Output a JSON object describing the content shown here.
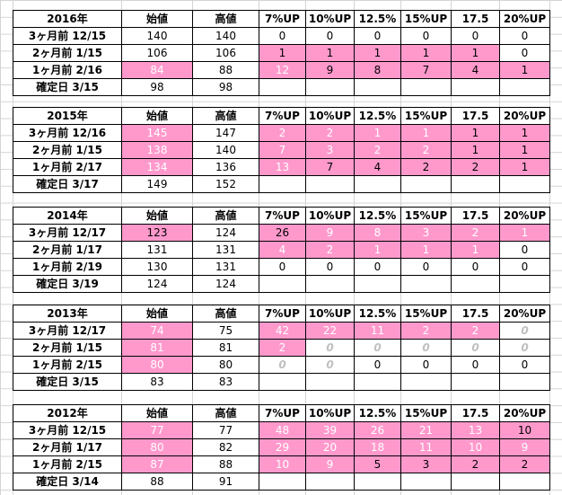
{
  "columns": [
    "始値",
    "高値",
    "7%UP",
    "10%UP",
    "12.5%",
    "15%UP",
    "17.5",
    "20%UP"
  ],
  "colors": {
    "highlight": "#ff99cc",
    "grid": "#d4d4d4"
  },
  "blocks": [
    {
      "year": "2016年",
      "rows": [
        {
          "label": "3ヶ月前 12/15",
          "cells": [
            {
              "v": "140"
            },
            {
              "v": "140"
            },
            {
              "v": "0"
            },
            {
              "v": "0"
            },
            {
              "v": "0"
            },
            {
              "v": "0"
            },
            {
              "v": "0"
            },
            {
              "v": "0"
            }
          ]
        },
        {
          "label": "2ヶ月前 1/15",
          "cells": [
            {
              "v": "106"
            },
            {
              "v": "106"
            },
            {
              "v": "1",
              "hl": true,
              "dark": true
            },
            {
              "v": "1",
              "hl": true,
              "dark": true
            },
            {
              "v": "1",
              "hl": true,
              "dark": true
            },
            {
              "v": "1",
              "hl": true,
              "dark": true
            },
            {
              "v": "1",
              "hl": true,
              "dark": true
            },
            {
              "v": "0"
            }
          ]
        },
        {
          "label": "1ヶ月前 2/16",
          "cells": [
            {
              "v": "84",
              "hl": true
            },
            {
              "v": "88"
            },
            {
              "v": "12",
              "hl": true
            },
            {
              "v": "9",
              "hl": true,
              "dark": true
            },
            {
              "v": "8",
              "hl": true,
              "dark": true
            },
            {
              "v": "7",
              "hl": true,
              "dark": true
            },
            {
              "v": "4",
              "hl": true,
              "dark": true
            },
            {
              "v": "1",
              "hl": true,
              "dark": true
            }
          ]
        },
        {
          "label": "確定日 3/15",
          "cells": [
            {
              "v": "98"
            },
            {
              "v": "98"
            },
            {
              "v": ""
            },
            {
              "v": ""
            },
            {
              "v": ""
            },
            {
              "v": ""
            },
            {
              "v": ""
            },
            {
              "v": ""
            }
          ]
        }
      ]
    },
    {
      "year": "2015年",
      "rows": [
        {
          "label": "3ヶ月前 12/16",
          "cells": [
            {
              "v": "145",
              "hl": true
            },
            {
              "v": "147"
            },
            {
              "v": "2",
              "hl": true
            },
            {
              "v": "2",
              "hl": true
            },
            {
              "v": "1",
              "hl": true
            },
            {
              "v": "1",
              "hl": true
            },
            {
              "v": "1",
              "hl": true,
              "dark": true
            },
            {
              "v": "1",
              "hl": true,
              "dark": true
            }
          ]
        },
        {
          "label": "2ヶ月前 1/15",
          "cells": [
            {
              "v": "138",
              "hl": true
            },
            {
              "v": "140"
            },
            {
              "v": "7",
              "hl": true
            },
            {
              "v": "3",
              "hl": true
            },
            {
              "v": "2",
              "hl": true
            },
            {
              "v": "2",
              "hl": true
            },
            {
              "v": "1",
              "hl": true,
              "dark": true
            },
            {
              "v": "1",
              "hl": true,
              "dark": true
            }
          ]
        },
        {
          "label": "1ヶ月前 2/17",
          "cells": [
            {
              "v": "134",
              "hl": true
            },
            {
              "v": "136"
            },
            {
              "v": "13",
              "hl": true
            },
            {
              "v": "7",
              "hl": true,
              "dark": true
            },
            {
              "v": "4",
              "hl": true,
              "dark": true
            },
            {
              "v": "2",
              "hl": true,
              "dark": true
            },
            {
              "v": "2",
              "hl": true,
              "dark": true
            },
            {
              "v": "1",
              "hl": true,
              "dark": true
            }
          ]
        },
        {
          "label": "確定日 3/17",
          "cells": [
            {
              "v": "149"
            },
            {
              "v": "152"
            },
            {
              "v": ""
            },
            {
              "v": ""
            },
            {
              "v": ""
            },
            {
              "v": ""
            },
            {
              "v": ""
            },
            {
              "v": ""
            }
          ]
        }
      ]
    },
    {
      "year": "2014年",
      "rows": [
        {
          "label": "3ヶ月前 12/17",
          "cells": [
            {
              "v": "123",
              "hl": true,
              "dark": true
            },
            {
              "v": "124"
            },
            {
              "v": "26",
              "hl": true,
              "dark": true
            },
            {
              "v": "9",
              "hl": true
            },
            {
              "v": "8",
              "hl": true
            },
            {
              "v": "3",
              "hl": true
            },
            {
              "v": "2",
              "hl": true
            },
            {
              "v": "1",
              "hl": true
            }
          ]
        },
        {
          "label": "2ヶ月前 1/17",
          "cells": [
            {
              "v": "131"
            },
            {
              "v": "131"
            },
            {
              "v": "4",
              "hl": true
            },
            {
              "v": "2",
              "hl": true
            },
            {
              "v": "1",
              "hl": true
            },
            {
              "v": "1",
              "hl": true
            },
            {
              "v": "1",
              "hl": true
            },
            {
              "v": "0"
            }
          ]
        },
        {
          "label": "1ヶ月前 2/19",
          "cells": [
            {
              "v": "130"
            },
            {
              "v": "131"
            },
            {
              "v": "0"
            },
            {
              "v": "0"
            },
            {
              "v": "0"
            },
            {
              "v": "0"
            },
            {
              "v": "0"
            },
            {
              "v": "0"
            }
          ]
        },
        {
          "label": "確定日 3/19",
          "cells": [
            {
              "v": "124"
            },
            {
              "v": "124"
            },
            {
              "v": ""
            },
            {
              "v": ""
            },
            {
              "v": ""
            },
            {
              "v": ""
            },
            {
              "v": ""
            },
            {
              "v": ""
            }
          ]
        }
      ]
    },
    {
      "year": "2013年",
      "rows": [
        {
          "label": "3ヶ月前 12/17",
          "cells": [
            {
              "v": "74",
              "hl": true
            },
            {
              "v": "75"
            },
            {
              "v": "42",
              "hl": true
            },
            {
              "v": "22",
              "hl": true
            },
            {
              "v": "11",
              "hl": true
            },
            {
              "v": "2",
              "hl": true
            },
            {
              "v": "2",
              "hl": true
            },
            {
              "v": "0",
              "zi": true
            }
          ]
        },
        {
          "label": "2ヶ月前 1/15",
          "cells": [
            {
              "v": "81",
              "hl": true
            },
            {
              "v": "81"
            },
            {
              "v": "2",
              "hl": true
            },
            {
              "v": "0",
              "zi": true
            },
            {
              "v": "0",
              "zi": true
            },
            {
              "v": "0",
              "zi": true
            },
            {
              "v": "0",
              "zi": true
            },
            {
              "v": "0",
              "zi": true
            }
          ]
        },
        {
          "label": "1ヶ月前 2/15",
          "cells": [
            {
              "v": "80",
              "hl": true
            },
            {
              "v": "80"
            },
            {
              "v": "0",
              "zi": true
            },
            {
              "v": "0",
              "zi": true
            },
            {
              "v": "0"
            },
            {
              "v": "0"
            },
            {
              "v": "0"
            },
            {
              "v": "0"
            }
          ]
        },
        {
          "label": "確定日 3/15",
          "cells": [
            {
              "v": "83"
            },
            {
              "v": "83"
            },
            {
              "v": ""
            },
            {
              "v": ""
            },
            {
              "v": ""
            },
            {
              "v": ""
            },
            {
              "v": ""
            },
            {
              "v": ""
            }
          ]
        }
      ]
    },
    {
      "year": "2012年",
      "rows": [
        {
          "label": "3ヶ月前 12/15",
          "cells": [
            {
              "v": "77",
              "hl": true
            },
            {
              "v": "77"
            },
            {
              "v": "48",
              "hl": true
            },
            {
              "v": "39",
              "hl": true
            },
            {
              "v": "26",
              "hl": true
            },
            {
              "v": "21",
              "hl": true
            },
            {
              "v": "13",
              "hl": true
            },
            {
              "v": "10",
              "hl": true,
              "dark": true
            }
          ]
        },
        {
          "label": "2ヶ月前 1/17",
          "cells": [
            {
              "v": "80",
              "hl": true
            },
            {
              "v": "82"
            },
            {
              "v": "29",
              "hl": true
            },
            {
              "v": "20",
              "hl": true
            },
            {
              "v": "18",
              "hl": true
            },
            {
              "v": "11",
              "hl": true
            },
            {
              "v": "10",
              "hl": true
            },
            {
              "v": "9",
              "hl": true
            }
          ]
        },
        {
          "label": "1ヶ月前 2/15",
          "cells": [
            {
              "v": "87",
              "hl": true
            },
            {
              "v": "88"
            },
            {
              "v": "10",
              "hl": true
            },
            {
              "v": "9",
              "hl": true
            },
            {
              "v": "5",
              "hl": true,
              "dark": true
            },
            {
              "v": "3",
              "hl": true,
              "dark": true
            },
            {
              "v": "2",
              "hl": true,
              "dark": true
            },
            {
              "v": "2",
              "hl": true,
              "dark": true
            }
          ]
        },
        {
          "label": "確定日 3/14",
          "cells": [
            {
              "v": "88"
            },
            {
              "v": "91"
            },
            {
              "v": ""
            },
            {
              "v": ""
            },
            {
              "v": ""
            },
            {
              "v": ""
            },
            {
              "v": ""
            },
            {
              "v": ""
            }
          ]
        }
      ]
    }
  ]
}
